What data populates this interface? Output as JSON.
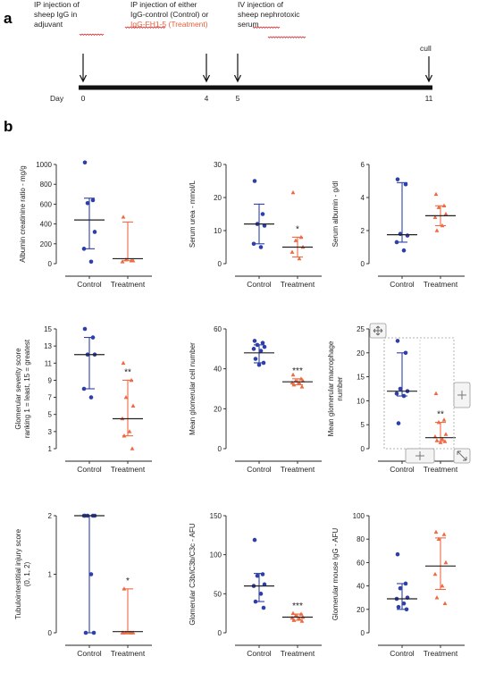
{
  "panels": {
    "a": "a",
    "b": "b"
  },
  "timeline": {
    "day_label": "Day",
    "events": [
      {
        "day": "0",
        "lines": [
          "IP injection of",
          "sheep IgG in",
          "adjuvant"
        ]
      },
      {
        "day": "4",
        "lines": [
          "IP injection of either",
          "IgG-control (Control) or",
          "IgG-FH1-5 (Treatment)"
        ]
      },
      {
        "day": "5",
        "lines": [
          "IV injection of",
          "sheep nephrotoxic",
          "serum"
        ]
      },
      {
        "day": "11",
        "lines": [
          "cull"
        ]
      }
    ],
    "days": [
      "0",
      "4",
      "5",
      "11"
    ]
  },
  "colors": {
    "control": "#2d3fa8",
    "treatment": "#ee6a43",
    "axis": "#222222"
  },
  "categories": [
    "Control",
    "Treatment"
  ],
  "chart_data": [
    {
      "type": "scatter",
      "ylabel": [
        "Albumin creatinine ratio - mg/g"
      ],
      "ylim": [
        0,
        1000
      ],
      "yticks": [
        0,
        200,
        400,
        600,
        800,
        1000
      ],
      "control": {
        "points": [
          1020,
          640,
          610,
          320,
          150,
          20
        ],
        "median": 440,
        "iqr": [
          150,
          660
        ]
      },
      "treatment": {
        "points": [
          470,
          30,
          40,
          30,
          20
        ],
        "median": 50,
        "iqr": [
          30,
          420
        ]
      },
      "sig": ""
    },
    {
      "type": "scatter",
      "ylabel": [
        "Serum urea - mmol/L"
      ],
      "ylim": [
        0,
        30
      ],
      "yticks": [
        0,
        10,
        20,
        30
      ],
      "control": {
        "points": [
          25,
          15,
          12,
          11.5,
          6,
          5
        ],
        "median": 12,
        "iqr": [
          6,
          18
        ]
      },
      "treatment": {
        "points": [
          21.5,
          8,
          7,
          5,
          3.5,
          1.5
        ],
        "median": 5,
        "iqr": [
          2,
          8
        ]
      },
      "sig": "*"
    },
    {
      "type": "scatter",
      "ylabel": [
        "Serum albumin - g/dl"
      ],
      "ylim": [
        0,
        6
      ],
      "yticks": [
        0,
        2,
        4,
        6
      ],
      "control": {
        "points": [
          5.1,
          4.8,
          1.8,
          1.7,
          1.3,
          0.8
        ],
        "median": 1.75,
        "iqr": [
          1.3,
          4.9
        ]
      },
      "treatment": {
        "points": [
          4.2,
          3.5,
          3.4,
          3.0,
          2.8,
          2.3,
          2.0
        ],
        "median": 2.9,
        "iqr": [
          2.3,
          3.5
        ]
      },
      "sig": ""
    },
    {
      "type": "scatter",
      "ylabel": [
        "Glomerular severity score",
        "ranking 1 = least, 15 = greatest"
      ],
      "ylim": [
        1,
        15
      ],
      "yticks": [
        1,
        3,
        5,
        7,
        9,
        11,
        13,
        15
      ],
      "control": {
        "points": [
          15,
          14,
          12,
          12,
          8,
          7
        ],
        "median": 12,
        "iqr": [
          8,
          14
        ]
      },
      "treatment": {
        "points": [
          11,
          9,
          7,
          6,
          4.5,
          3,
          2.5,
          1
        ],
        "median": 4.5,
        "iqr": [
          2.5,
          9
        ]
      },
      "sig": "**"
    },
    {
      "type": "scatter",
      "ylabel": [
        "Mean glomerular cell number"
      ],
      "ylim": [
        0,
        60
      ],
      "yticks": [
        0,
        20,
        40,
        60
      ],
      "control": {
        "points": [
          54,
          53,
          52,
          51,
          50,
          49,
          45,
          43,
          42
        ],
        "median": 48,
        "iqr": [
          43,
          52
        ]
      },
      "treatment": {
        "points": [
          37,
          35,
          34,
          34,
          33,
          33,
          32,
          31
        ],
        "median": 33.5,
        "iqr": [
          32,
          35
        ]
      },
      "sig": "***"
    },
    {
      "type": "scatter",
      "ylabel": [
        "Mean glomerular macrophage",
        "number"
      ],
      "ylim": [
        0,
        25
      ],
      "yticks": [
        0,
        5,
        10,
        15,
        20,
        25
      ],
      "control": {
        "points": [
          22.5,
          20,
          12.5,
          12,
          11.5,
          11,
          5.3
        ],
        "median": 12,
        "iqr": [
          11,
          20
        ]
      },
      "treatment": {
        "points": [
          11.5,
          6,
          5.5,
          3,
          2.5,
          2,
          1.7,
          1.5,
          1.3
        ],
        "median": 2.3,
        "iqr": [
          1.5,
          5.5
        ]
      },
      "sig": "**"
    },
    {
      "type": "scatter",
      "ylabel": [
        "Tubulointerstitial injury score",
        "(0, 1, 2)"
      ],
      "ylim": [
        0,
        2
      ],
      "yticks": [
        0,
        1,
        2
      ],
      "control": {
        "points": [
          2,
          2,
          2,
          2,
          2,
          1,
          0,
          0
        ],
        "median": 2,
        "iqr": [
          0,
          2
        ]
      },
      "treatment": {
        "points": [
          0,
          0,
          0,
          0,
          0,
          0,
          0.75
        ],
        "median": 0.02,
        "iqr": [
          0,
          0.75
        ]
      },
      "sig": "*"
    },
    {
      "type": "scatter",
      "ylabel": [
        "Glomerular C3b/iC3b/C3c - AFU"
      ],
      "ylim": [
        0,
        150
      ],
      "yticks": [
        0,
        50,
        100,
        150
      ],
      "control": {
        "points": [
          119,
          75,
          73,
          62,
          60,
          50,
          40,
          32
        ],
        "median": 60,
        "iqr": [
          40,
          76
        ]
      },
      "treatment": {
        "points": [
          25,
          24,
          22,
          20,
          19,
          18,
          16,
          15
        ],
        "median": 20,
        "iqr": [
          16,
          24
        ]
      },
      "sig": "***"
    },
    {
      "type": "scatter",
      "ylabel": [
        "Glomerular mouse IgG - AFU"
      ],
      "ylim": [
        0,
        100
      ],
      "yticks": [
        0,
        20,
        40,
        60,
        80,
        100
      ],
      "control": {
        "points": [
          67,
          42,
          38,
          30,
          29,
          25,
          22,
          20
        ],
        "median": 29,
        "iqr": [
          20,
          42
        ]
      },
      "treatment": {
        "points": [
          86,
          84,
          80,
          60,
          50,
          40,
          30,
          25
        ],
        "median": 57,
        "iqr": [
          37,
          81
        ]
      },
      "sig": ""
    }
  ]
}
